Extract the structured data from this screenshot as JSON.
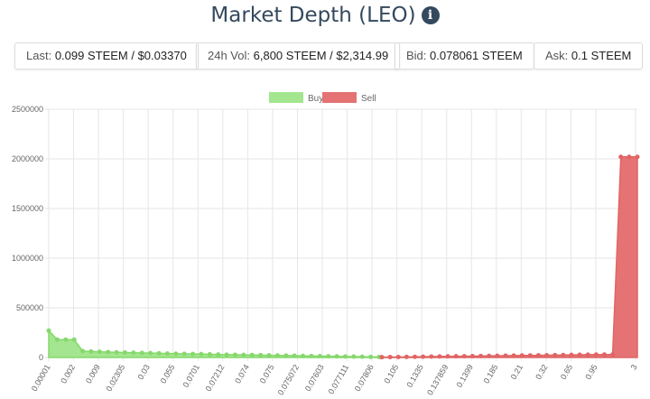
{
  "title": "Market Depth (LEO)",
  "stats": {
    "last_label": "Last:",
    "last_value": "0.099 STEEM / $0.03370",
    "vol_label": "24h Vol:",
    "vol_value": "6,800 STEEM / $2,314.99",
    "bid_label": "Bid:",
    "bid_value": "0.078061 STEEM",
    "ask_label": "Ask:",
    "ask_value": "0.1 STEEM"
  },
  "chart_data": {
    "type": "area",
    "legend": [
      {
        "name": "Buy",
        "color": "#a3e68f"
      },
      {
        "name": "Sell",
        "color": "#e57373"
      }
    ],
    "legend_position": "top",
    "ylim": [
      0,
      2500000
    ],
    "y_ticks": [
      "0",
      "500000",
      "1000000",
      "1500000",
      "2000000",
      "2500000"
    ],
    "x_ticks": [
      "0.00001",
      "0.002",
      "0.009",
      "0.02305",
      "0.03",
      "0.055",
      "0.0701",
      "0.07212",
      "0.074",
      "0.075",
      "0.075072",
      "0.07603",
      "0.077111",
      "0.07806",
      "0.105",
      "0.1335",
      "0.137859",
      "0.1399",
      "0.185",
      "0.21",
      "0.32",
      "0.65",
      "0.95",
      "3"
    ],
    "buy_depth": [
      270000,
      180000,
      180000,
      180000,
      65000,
      60000,
      58000,
      55000,
      52000,
      50000,
      48000,
      46000,
      44000,
      42000,
      40000,
      38000,
      36000,
      35000,
      34000,
      32000,
      30000,
      28000,
      27000,
      26000,
      25000,
      24000,
      22000,
      20000,
      19000,
      18000,
      16000,
      15000,
      14000,
      12000,
      11000,
      10000,
      9000,
      8000,
      6000,
      5000
    ],
    "sell_depth": [
      3000,
      4000,
      5000,
      6000,
      7000,
      8000,
      9000,
      10000,
      11000,
      12000,
      13000,
      14000,
      15000,
      16000,
      17000,
      18000,
      19000,
      20000,
      21000,
      22000,
      23000,
      24000,
      25000,
      26000,
      27000,
      28000,
      29000,
      30000,
      31000,
      2020000,
      2020000,
      2020000
    ]
  }
}
